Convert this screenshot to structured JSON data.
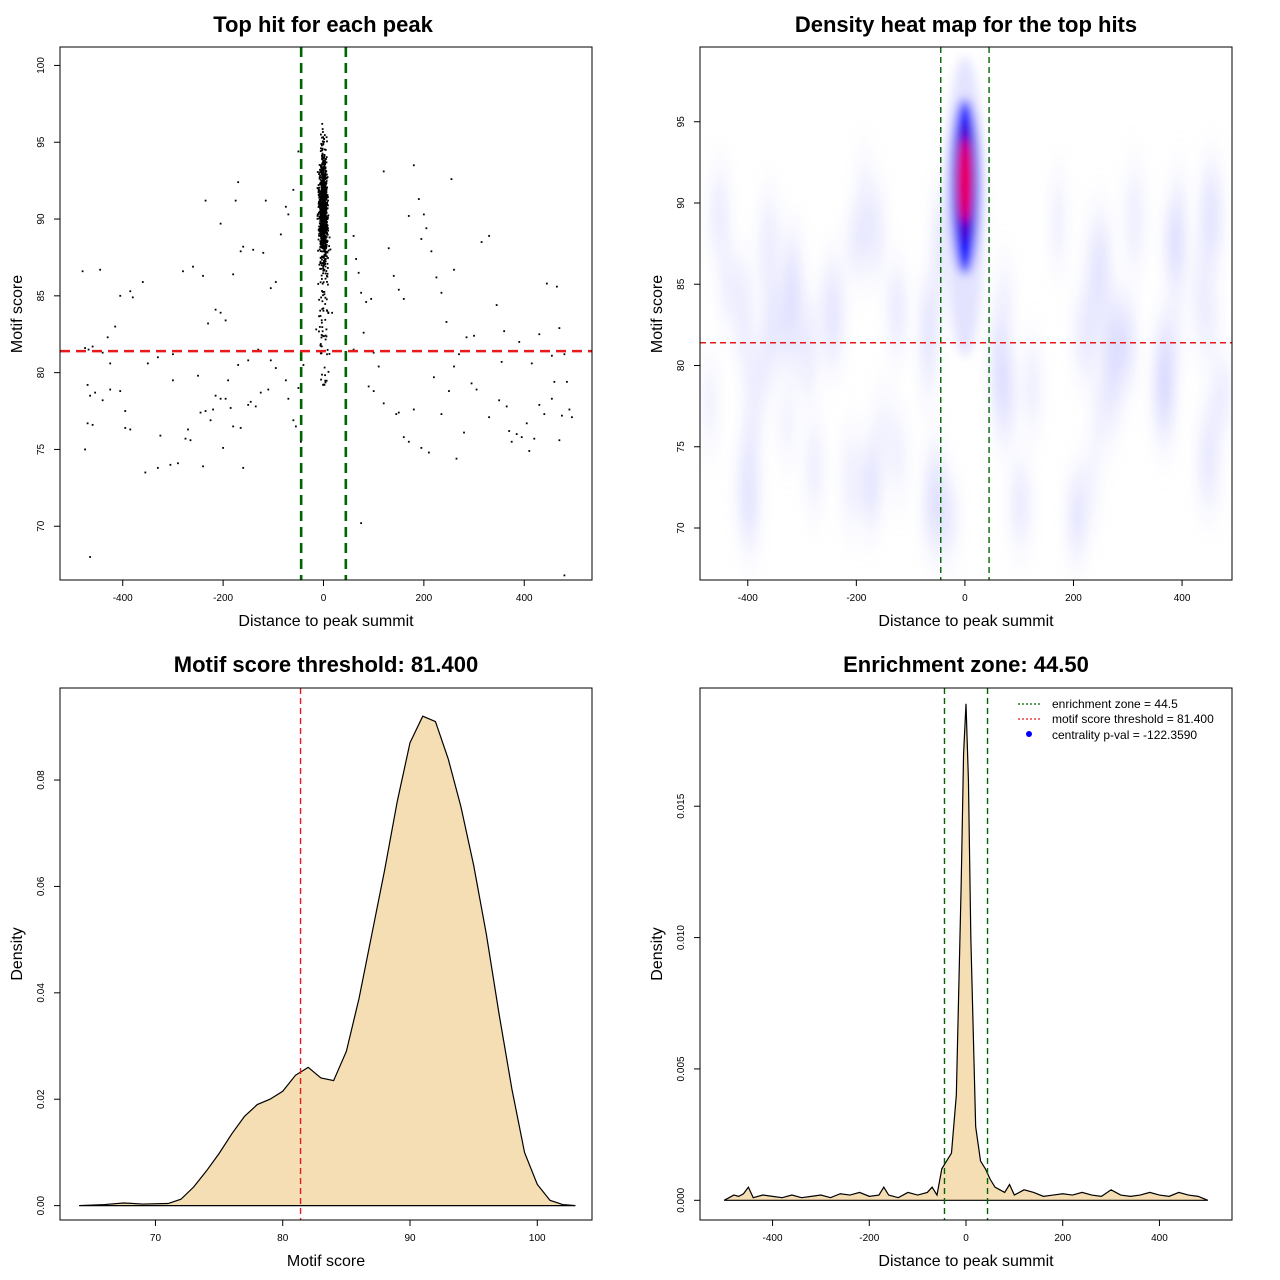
{
  "chart_data": [
    {
      "id": "scatter",
      "type": "scatter",
      "title": "Top hit for each peak",
      "xlabel": "Distance to peak summit",
      "ylabel": "Motif score",
      "xlim": [
        -525,
        535
      ],
      "ylim": [
        66.5,
        101.2
      ],
      "xticks": [
        -400,
        -200,
        0,
        200,
        400
      ],
      "yticks": [
        70,
        75,
        80,
        85,
        90,
        95,
        100
      ],
      "threshold_y": 81.4,
      "zone_x": [
        -44.5,
        44.5
      ],
      "colors": {
        "points": "#000000",
        "threshold": "#e41a1c",
        "zone": "#006400"
      },
      "points": [
        [
          -480,
          86.6
        ],
        [
          -445,
          86.7
        ],
        [
          -468,
          81.5
        ],
        [
          -475,
          81.6
        ],
        [
          -460,
          81.7
        ],
        [
          -440,
          81.3
        ],
        [
          -430,
          82.3
        ],
        [
          -425,
          80.6
        ],
        [
          -415,
          83.0
        ],
        [
          -405,
          85.0
        ],
        [
          -385,
          85.3
        ],
        [
          -380,
          84.9
        ],
        [
          -360,
          85.9
        ],
        [
          -350,
          80.6
        ],
        [
          -330,
          81.0
        ],
        [
          -300,
          81.2
        ],
        [
          -280,
          86.6
        ],
        [
          -260,
          86.9
        ],
        [
          -240,
          86.3
        ],
        [
          -230,
          83.2
        ],
        [
          -215,
          84.1
        ],
        [
          -205,
          83.9
        ],
        [
          -195,
          83.4
        ],
        [
          -180,
          86.4
        ],
        [
          -165,
          87.9
        ],
        [
          -160,
          88.2
        ],
        [
          -140,
          88.0
        ],
        [
          -120,
          87.8
        ],
        [
          -105,
          85.5
        ],
        [
          -95,
          85.9
        ],
        [
          -85,
          89.0
        ],
        [
          -75,
          90.8
        ],
        [
          -70,
          90.3
        ],
        [
          -60,
          91.9
        ],
        [
          -50,
          94.4
        ],
        [
          -235,
          91.2
        ],
        [
          -205,
          89.7
        ],
        [
          -175,
          91.2
        ],
        [
          -170,
          92.4
        ],
        [
          -115,
          91.2
        ],
        [
          -470,
          79.2
        ],
        [
          -465,
          78.5
        ],
        [
          -455,
          78.7
        ],
        [
          -440,
          78.2
        ],
        [
          -425,
          78.9
        ],
        [
          -405,
          78.8
        ],
        [
          -395,
          77.5
        ],
        [
          -395,
          76.4
        ],
        [
          -385,
          76.3
        ],
        [
          -470,
          76.7
        ],
        [
          -460,
          76.6
        ],
        [
          -475,
          75.0
        ],
        [
          -355,
          73.5
        ],
        [
          -330,
          73.8
        ],
        [
          -305,
          74.0
        ],
        [
          -270,
          76.3
        ],
        [
          -265,
          75.6
        ],
        [
          -245,
          77.4
        ],
        [
          -235,
          77.5
        ],
        [
          -220,
          77.6
        ],
        [
          -215,
          78.5
        ],
        [
          -205,
          78.3
        ],
        [
          -195,
          78.3
        ],
        [
          -185,
          77.7
        ],
        [
          -180,
          76.5
        ],
        [
          -165,
          76.4
        ],
        [
          -160,
          73.8
        ],
        [
          -150,
          77.9
        ],
        [
          -145,
          78.1
        ],
        [
          -135,
          77.8
        ],
        [
          -125,
          78.7
        ],
        [
          -110,
          78.9
        ],
        [
          -240,
          73.9
        ],
        [
          -200,
          75.1
        ],
        [
          -290,
          74.1
        ],
        [
          -325,
          75.9
        ],
        [
          -275,
          75.7
        ],
        [
          -225,
          76.9
        ],
        [
          -190,
          79.5
        ],
        [
          -465,
          68.0
        ],
        [
          -300,
          79.5
        ],
        [
          -250,
          79.8
        ],
        [
          -170,
          80.5
        ],
        [
          -150,
          80.8
        ],
        [
          -130,
          81.5
        ],
        [
          -105,
          80.8
        ],
        [
          -95,
          80.3
        ],
        [
          -75,
          79.5
        ],
        [
          -70,
          78.3
        ],
        [
          -60,
          76.9
        ],
        [
          -55,
          76.5
        ],
        [
          -45,
          75.5
        ],
        [
          -50,
          79.0
        ],
        [
          -40,
          80.5
        ],
        [
          60,
          88.9
        ],
        [
          65,
          87.4
        ],
        [
          70,
          86.5
        ],
        [
          75,
          85.2
        ],
        [
          85,
          84.6
        ],
        [
          95,
          84.8
        ],
        [
          100,
          81.3
        ],
        [
          110,
          80.4
        ],
        [
          120,
          93.1
        ],
        [
          130,
          88.1
        ],
        [
          140,
          86.3
        ],
        [
          150,
          85.4
        ],
        [
          160,
          84.8
        ],
        [
          170,
          90.2
        ],
        [
          180,
          93.5
        ],
        [
          190,
          91.3
        ],
        [
          195,
          88.7
        ],
        [
          200,
          90.3
        ],
        [
          205,
          89.4
        ],
        [
          215,
          87.9
        ],
        [
          225,
          86.2
        ],
        [
          235,
          85.2
        ],
        [
          245,
          83.3
        ],
        [
          255,
          92.6
        ],
        [
          260,
          86.7
        ],
        [
          270,
          81.2
        ],
        [
          285,
          82.3
        ],
        [
          300,
          82.4
        ],
        [
          315,
          88.5
        ],
        [
          330,
          88.9
        ],
        [
          345,
          84.4
        ],
        [
          360,
          82.7
        ],
        [
          390,
          82.0
        ],
        [
          415,
          80.6
        ],
        [
          430,
          82.5
        ],
        [
          445,
          85.8
        ],
        [
          455,
          81.1
        ],
        [
          465,
          85.6
        ],
        [
          470,
          82.9
        ],
        [
          480,
          81.2
        ],
        [
          60,
          81.5
        ],
        [
          80,
          82.6
        ],
        [
          90,
          79.1
        ],
        [
          100,
          78.8
        ],
        [
          120,
          78.0
        ],
        [
          145,
          77.3
        ],
        [
          150,
          77.4
        ],
        [
          160,
          75.8
        ],
        [
          170,
          75.5
        ],
        [
          180,
          77.6
        ],
        [
          195,
          75.1
        ],
        [
          210,
          74.8
        ],
        [
          220,
          79.7
        ],
        [
          235,
          77.3
        ],
        [
          250,
          78.8
        ],
        [
          260,
          80.4
        ],
        [
          265,
          74.4
        ],
        [
          280,
          76.1
        ],
        [
          295,
          79.3
        ],
        [
          305,
          78.9
        ],
        [
          330,
          77.1
        ],
        [
          350,
          78.2
        ],
        [
          355,
          80.7
        ],
        [
          365,
          77.8
        ],
        [
          370,
          76.2
        ],
        [
          375,
          75.5
        ],
        [
          385,
          76.0
        ],
        [
          395,
          75.8
        ],
        [
          405,
          76.7
        ],
        [
          410,
          74.9
        ],
        [
          420,
          75.7
        ],
        [
          430,
          77.9
        ],
        [
          440,
          77.3
        ],
        [
          455,
          78.3
        ],
        [
          460,
          79.4
        ],
        [
          470,
          75.6
        ],
        [
          475,
          77.2
        ],
        [
          485,
          79.4
        ],
        [
          490,
          77.6
        ],
        [
          495,
          77.1
        ],
        [
          75,
          70.2
        ],
        [
          480,
          66.8
        ]
      ]
    },
    {
      "id": "heatmap",
      "type": "heatmap",
      "title": "Density heat map for the top hits",
      "xlabel": "Distance to peak summit",
      "ylabel": "Motif score",
      "xlim": [
        -488,
        492
      ],
      "ylim": [
        66.8,
        99.6
      ],
      "xticks": [
        -400,
        -200,
        0,
        200,
        400
      ],
      "yticks": [
        70,
        75,
        80,
        85,
        90,
        95
      ],
      "threshold_y": 81.4,
      "zone_x": [
        -44.5,
        44.5
      ],
      "peak_center": [
        0,
        91.0
      ],
      "colors": {
        "low": "#ffffff",
        "mid": "#0000ff",
        "high": "#ff0000",
        "threshold": "#e41a1c",
        "zone": "#006400"
      }
    },
    {
      "id": "score_density",
      "type": "area",
      "title": "Motif score threshold: 81.400",
      "xlabel": "Motif score",
      "ylabel": "Density",
      "xlim": [
        62.5,
        104.3
      ],
      "ylim": [
        -0.0027,
        0.0973
      ],
      "xticks": [
        70,
        80,
        90,
        100
      ],
      "yticks": [
        0.0,
        0.02,
        0.04,
        0.06,
        0.08
      ],
      "ytick_labels": [
        "0.00",
        "0.02",
        "0.04",
        "0.06",
        "0.08"
      ],
      "threshold_x": 81.4,
      "colors": {
        "fill": "#f5deb3",
        "line": "#000000",
        "threshold": "#e41a1c"
      },
      "x": [
        64,
        66,
        67.5,
        69,
        71,
        72,
        73,
        74,
        75,
        76,
        77,
        78,
        79,
        80,
        81,
        82,
        83,
        84,
        85,
        86,
        87,
        88,
        89,
        90,
        91,
        92,
        93,
        94,
        95,
        96,
        97,
        98,
        99,
        100,
        101,
        102,
        103
      ],
      "y": [
        0.0,
        0.0002,
        0.0005,
        0.0003,
        0.0004,
        0.0012,
        0.0035,
        0.0065,
        0.0098,
        0.0135,
        0.0168,
        0.019,
        0.02,
        0.0215,
        0.0245,
        0.026,
        0.024,
        0.0235,
        0.029,
        0.039,
        0.051,
        0.063,
        0.076,
        0.087,
        0.092,
        0.091,
        0.084,
        0.075,
        0.064,
        0.051,
        0.036,
        0.022,
        0.01,
        0.004,
        0.001,
        0.0002,
        0.0
      ]
    },
    {
      "id": "distance_density",
      "type": "area",
      "title": "Enrichment zone: 44.50",
      "xlabel": "Distance to peak summit",
      "ylabel": "Density",
      "xlim": [
        -550,
        550
      ],
      "ylim": [
        -0.00075,
        0.0195
      ],
      "xticks": [
        -400,
        -200,
        0,
        200,
        400
      ],
      "yticks": [
        0.0,
        0.005,
        0.01,
        0.015
      ],
      "ytick_labels": [
        "0.000",
        "0.005",
        "0.010",
        "0.015"
      ],
      "zone_x": [
        -44.5,
        44.5
      ],
      "colors": {
        "fill": "#f5deb3",
        "line": "#000000",
        "zone": "#006400",
        "threshold": "#e41a1c",
        "pval": "#0000ff"
      },
      "legend": {
        "position": "top-right",
        "entries": [
          {
            "label": "enrichment zone = 44.5",
            "style": "dotted",
            "color": "#006400"
          },
          {
            "label": "motif score threshold = 81.400",
            "style": "dotted",
            "color": "#e41a1c"
          },
          {
            "label": "centrality p-val = -122.3590",
            "style": "point",
            "color": "#0000ff"
          }
        ]
      },
      "x": [
        -500,
        -490,
        -480,
        -470,
        -460,
        -450,
        -440,
        -420,
        -400,
        -380,
        -360,
        -340,
        -320,
        -300,
        -280,
        -260,
        -240,
        -220,
        -200,
        -180,
        -170,
        -160,
        -140,
        -120,
        -100,
        -80,
        -70,
        -60,
        -50,
        -40,
        -30,
        -20,
        -10,
        -5,
        0,
        5,
        10,
        20,
        30,
        40,
        50,
        60,
        70,
        80,
        90,
        100,
        120,
        140,
        160,
        180,
        200,
        220,
        240,
        260,
        280,
        300,
        320,
        340,
        360,
        380,
        400,
        420,
        440,
        460,
        480,
        500
      ],
      "y": [
        0.0,
        0.0001,
        0.0002,
        0.00015,
        0.00025,
        0.0005,
        0.0001,
        0.0002,
        0.00015,
        0.0001,
        0.0002,
        0.0001,
        0.00015,
        0.0002,
        0.0001,
        0.00025,
        0.0002,
        0.0003,
        0.00015,
        0.0002,
        0.0005,
        0.0002,
        0.0001,
        0.0003,
        0.0002,
        0.0003,
        0.0005,
        0.0002,
        0.0012,
        0.0015,
        0.0018,
        0.004,
        0.012,
        0.017,
        0.0189,
        0.016,
        0.01,
        0.0028,
        0.0015,
        0.0012,
        0.0008,
        0.0005,
        0.0004,
        0.0003,
        0.0006,
        0.0002,
        0.0004,
        0.0003,
        0.00015,
        0.0002,
        0.00025,
        0.0002,
        0.0003,
        0.0002,
        0.00015,
        0.0004,
        0.0002,
        0.00015,
        0.0002,
        0.0003,
        0.0002,
        0.00015,
        0.0003,
        0.0002,
        0.00015,
        0.0
      ]
    }
  ]
}
